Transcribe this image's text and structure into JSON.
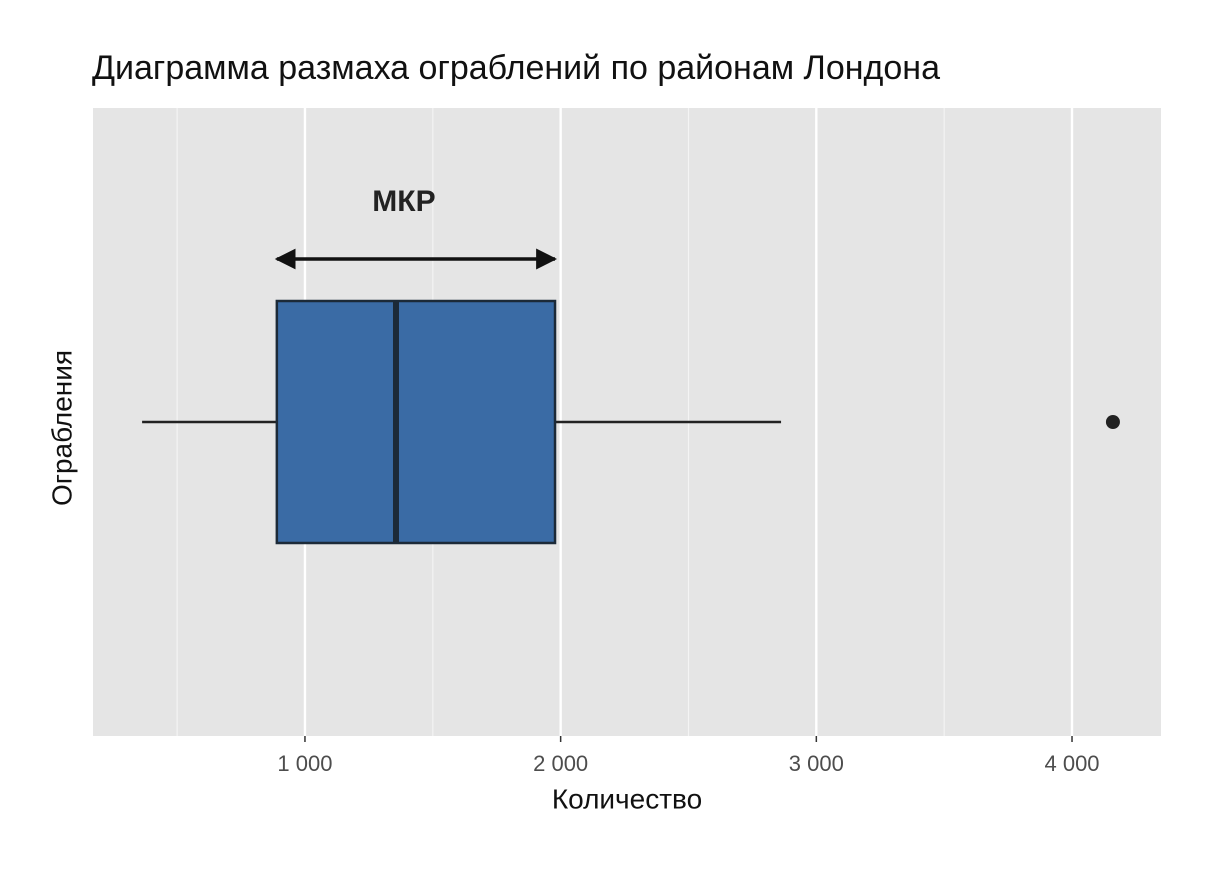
{
  "chart_data": {
    "type": "box",
    "title": "Диаграмма размаха ограблений по районам Лондона",
    "x_label": "Количество",
    "y_label": "Ограбления",
    "annotation": "МКР",
    "orientation": "horizontal",
    "color": "#3a6ba5",
    "box": {
      "whisker_low": 363,
      "q1": 890,
      "median": 1356,
      "q3": 1978,
      "whisker_high": 2862,
      "outliers": [
        4160
      ]
    },
    "xlim": [
      171,
      4348
    ],
    "xticks": [
      {
        "value": 1000,
        "label": "1 000"
      },
      {
        "value": 2000,
        "label": "2 000"
      },
      {
        "value": 3000,
        "label": "3 000"
      },
      {
        "value": 4000,
        "label": "4 000"
      }
    ],
    "x_minor_ticks": [
      500,
      1500,
      2500,
      3500
    ],
    "grid": true
  }
}
